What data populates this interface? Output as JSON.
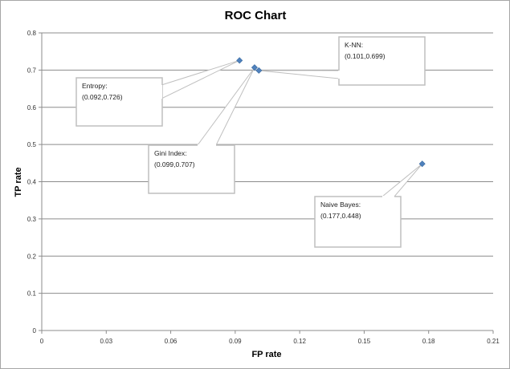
{
  "chart_data": {
    "type": "scatter",
    "title": "ROC Chart",
    "xlabel": "FP rate",
    "ylabel": "TP rate",
    "xlim": [
      0,
      0.21
    ],
    "ylim": [
      0,
      0.8
    ],
    "x_ticks": [
      "0",
      "0.03",
      "0.06",
      "0.09",
      "0.12",
      "0.15",
      "0.18",
      "0.21"
    ],
    "y_ticks": [
      "0",
      "0.1",
      "0.2",
      "0.3",
      "0.4",
      "0.5",
      "0.6",
      "0.7",
      "0.8"
    ],
    "grid": "horizontal",
    "marker_color": "#4f81bd",
    "points": [
      {
        "label": "Entropy:",
        "coords": "(0.092,0.726)",
        "x": 0.092,
        "y": 0.726
      },
      {
        "label": "Gini Index:",
        "coords": "(0.099,0.707)",
        "x": 0.099,
        "y": 0.707
      },
      {
        "label": "K-NN:",
        "coords": "(0.101,0.699)",
        "x": 0.101,
        "y": 0.699
      },
      {
        "label": "Naive Bayes:",
        "coords": "(0.177,0.448)",
        "x": 0.177,
        "y": 0.448
      }
    ]
  }
}
